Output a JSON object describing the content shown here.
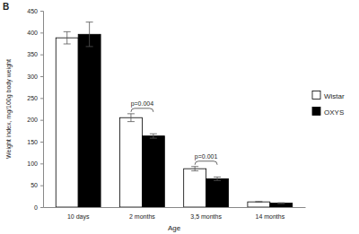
{
  "chart_data": {
    "type": "bar",
    "title": "B",
    "x_label": "Age",
    "y_label": "Weight index, mg/100g body weight",
    "categories": [
      "10 days",
      "2 months",
      "3,5 months",
      "14 months"
    ],
    "series": [
      {
        "name": "Wistar",
        "color": "#ffffff",
        "values": [
          388,
          205,
          88,
          12
        ],
        "errors": [
          14,
          9,
          5,
          1
        ]
      },
      {
        "name": "OXYS",
        "color": "#000000",
        "values": [
          396,
          163,
          65,
          9
        ],
        "errors": [
          28,
          5,
          4,
          1
        ]
      }
    ],
    "ylim": [
      0,
      450
    ],
    "yticks": [
      0,
      50,
      100,
      150,
      200,
      250,
      300,
      350,
      400,
      450
    ],
    "grid": false,
    "legend": "right",
    "annotations": [
      {
        "text": "p=0.004",
        "category": "2 months"
      },
      {
        "text": "p=0.001",
        "category": "3,5 months"
      }
    ]
  }
}
